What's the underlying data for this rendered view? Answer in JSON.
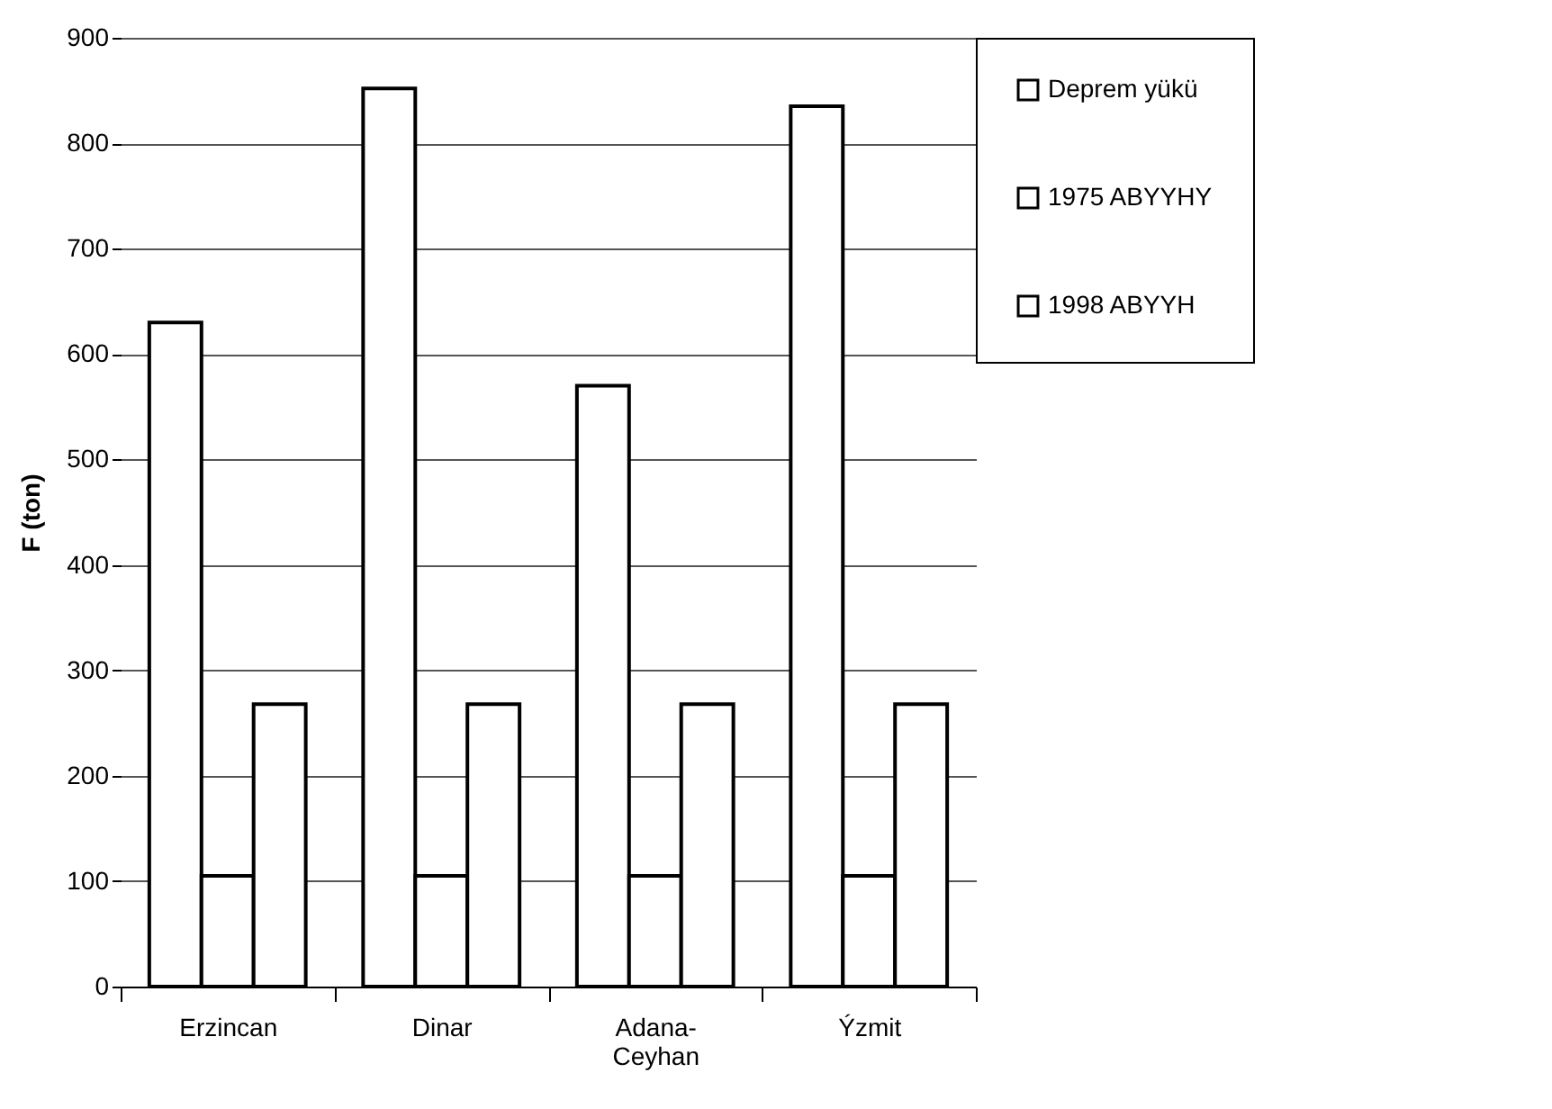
{
  "chart_data": {
    "type": "bar",
    "ylabel": "F (ton)",
    "categories": [
      "Erzincan",
      "Dinar",
      "Adana-Ceyhan",
      "Ýzmit"
    ],
    "series": [
      {
        "name": "Deprem yükü",
        "color": "#ffffff",
        "values": [
          630,
          852,
          570,
          835
        ]
      },
      {
        "name": "1975 ABYYHY",
        "color": "#ffffff",
        "values": [
          105,
          105,
          105,
          105
        ]
      },
      {
        "name": "1998 ABYYH",
        "color": "#ffffff",
        "values": [
          268,
          268,
          268,
          268
        ]
      }
    ],
    "ylim": [
      0,
      900
    ],
    "yticks": [
      0,
      100,
      200,
      300,
      400,
      500,
      600,
      700,
      800,
      900
    ],
    "grid": "y",
    "legend": "right"
  }
}
